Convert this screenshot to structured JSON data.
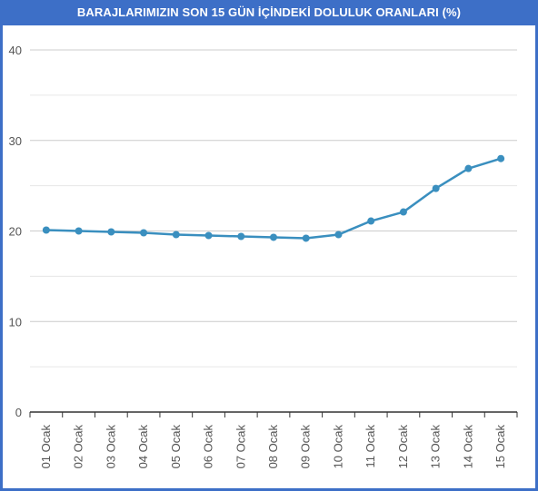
{
  "chart_data": {
    "type": "line",
    "title": "BARAJLARIMIZIN SON 15 GÜN İÇİNDEKİ DOLULUK ORANLARI (%)",
    "xlabel": "",
    "ylabel": "",
    "categories": [
      "01 Ocak",
      "02 Ocak",
      "03 Ocak",
      "04 Ocak",
      "05 Ocak",
      "06 Ocak",
      "07 Ocak",
      "08 Ocak",
      "09 Ocak",
      "10 Ocak",
      "11 Ocak",
      "12 Ocak",
      "13 Ocak",
      "14 Ocak",
      "15 Ocak"
    ],
    "series": [
      {
        "values": [
          20.1,
          20.0,
          19.9,
          19.8,
          19.6,
          19.5,
          19.4,
          19.3,
          19.2,
          19.6,
          21.1,
          22.1,
          24.7,
          26.9,
          28.0
        ]
      }
    ],
    "ylim": [
      0,
      40
    ],
    "yticks": [
      0,
      10,
      20,
      30,
      40
    ],
    "grid": true,
    "legend": "none",
    "colors": {
      "line": "#3a8fbf",
      "marker": "#3a8fbf",
      "title_bar": "#3d6fc7",
      "grid_major": "#cccccc",
      "grid_minor": "#e6e6e6",
      "axis": "#333333"
    }
  }
}
